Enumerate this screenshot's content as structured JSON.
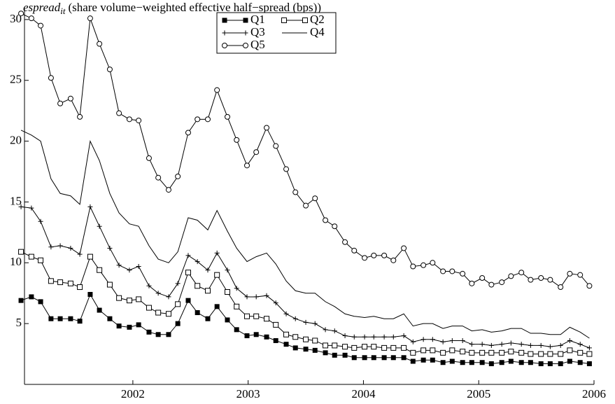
{
  "chart_data": {
    "type": "line",
    "title": {
      "main": "espread",
      "subscript": "it",
      "rest": "(share volume−weighted effective half−spread (bps))"
    },
    "x": [
      2001.03,
      2001.12,
      2001.2,
      2001.29,
      2001.37,
      2001.46,
      2001.54,
      2001.63,
      2001.71,
      2001.8,
      2001.88,
      2001.97,
      2002.05,
      2002.14,
      2002.22,
      2002.31,
      2002.39,
      2002.48,
      2002.56,
      2002.65,
      2002.73,
      2002.82,
      2002.9,
      2002.99,
      2003.07,
      2003.16,
      2003.24,
      2003.33,
      2003.41,
      2003.5,
      2003.58,
      2003.67,
      2003.75,
      2003.84,
      2003.92,
      2004.01,
      2004.09,
      2004.18,
      2004.26,
      2004.35,
      2004.43,
      2004.52,
      2004.6,
      2004.69,
      2004.77,
      2004.86,
      2004.94,
      2005.03,
      2005.11,
      2005.2,
      2005.28,
      2005.37,
      2005.45,
      2005.54,
      2005.62,
      2005.71,
      2005.79,
      2005.88,
      2005.96
    ],
    "series": [
      {
        "name": "Q1",
        "color": "#000000",
        "marker": "filled-square",
        "values": [
          6.9,
          7.2,
          6.8,
          5.4,
          5.4,
          5.4,
          5.2,
          7.4,
          6.1,
          5.4,
          4.8,
          4.7,
          4.9,
          4.3,
          4.1,
          4.1,
          5.0,
          6.9,
          5.9,
          5.4,
          6.4,
          5.3,
          4.5,
          4.0,
          4.1,
          3.9,
          3.6,
          3.3,
          3.0,
          2.9,
          2.8,
          2.6,
          2.4,
          2.4,
          2.2,
          2.2,
          2.2,
          2.2,
          2.2,
          2.2,
          1.9,
          2.0,
          2.0,
          1.8,
          1.9,
          1.8,
          1.8,
          1.8,
          1.7,
          1.8,
          1.9,
          1.8,
          1.8,
          1.7,
          1.7,
          1.7,
          1.9,
          1.8,
          1.7
        ]
      },
      {
        "name": "Q2",
        "color": "#000000",
        "marker": "open-square",
        "values": [
          10.9,
          10.5,
          10.2,
          8.5,
          8.4,
          8.3,
          8.0,
          10.5,
          9.4,
          8.2,
          7.1,
          6.9,
          7.0,
          6.3,
          5.9,
          5.8,
          6.6,
          9.2,
          8.1,
          7.7,
          9.0,
          7.6,
          6.4,
          5.6,
          5.6,
          5.4,
          4.9,
          4.1,
          3.9,
          3.7,
          3.6,
          3.2,
          3.2,
          3.1,
          3.0,
          3.1,
          3.1,
          3.0,
          3.0,
          3.0,
          2.6,
          2.8,
          2.8,
          2.6,
          2.8,
          2.7,
          2.6,
          2.6,
          2.6,
          2.6,
          2.7,
          2.6,
          2.5,
          2.5,
          2.5,
          2.5,
          2.8,
          2.6,
          2.5
        ]
      },
      {
        "name": "Q3",
        "color": "#000000",
        "marker": "plus",
        "values": [
          14.6,
          14.5,
          13.4,
          11.3,
          11.4,
          11.2,
          10.7,
          14.6,
          13.0,
          11.2,
          9.8,
          9.4,
          9.7,
          8.1,
          7.5,
          7.2,
          8.3,
          10.6,
          10.1,
          9.4,
          10.8,
          9.4,
          7.9,
          7.2,
          7.2,
          7.3,
          6.7,
          5.8,
          5.4,
          5.1,
          5.0,
          4.5,
          4.4,
          4.0,
          3.9,
          3.9,
          3.9,
          3.9,
          3.9,
          4.0,
          3.5,
          3.7,
          3.7,
          3.5,
          3.6,
          3.6,
          3.3,
          3.3,
          3.2,
          3.3,
          3.4,
          3.3,
          3.2,
          3.2,
          3.1,
          3.2,
          3.6,
          3.3,
          3.0
        ]
      },
      {
        "name": "Q4",
        "color": "#000000",
        "marker": "none",
        "values": [
          20.9,
          20.5,
          20.0,
          16.9,
          15.7,
          15.5,
          14.8,
          20.0,
          18.4,
          15.7,
          14.1,
          13.2,
          13.0,
          11.4,
          10.3,
          10.0,
          10.9,
          13.7,
          13.5,
          12.7,
          14.3,
          12.6,
          11.2,
          10.1,
          10.5,
          10.8,
          9.9,
          8.5,
          7.7,
          7.5,
          7.5,
          6.8,
          6.4,
          5.8,
          5.6,
          5.5,
          5.6,
          5.4,
          5.4,
          5.8,
          4.8,
          5.0,
          5.0,
          4.6,
          4.8,
          4.8,
          4.4,
          4.5,
          4.3,
          4.4,
          4.6,
          4.6,
          4.2,
          4.2,
          4.1,
          4.1,
          4.7,
          4.3,
          3.8
        ]
      },
      {
        "name": "Q5",
        "color": "#000000",
        "marker": "open-circle",
        "values": [
          30.5,
          30.1,
          29.5,
          25.2,
          23.1,
          23.5,
          22.0,
          30.1,
          28.0,
          25.9,
          22.3,
          21.8,
          21.7,
          18.6,
          17.0,
          16.0,
          17.1,
          20.7,
          21.8,
          21.8,
          24.2,
          22.0,
          20.1,
          18.0,
          19.1,
          21.1,
          19.6,
          17.7,
          15.8,
          14.7,
          15.3,
          13.5,
          13.0,
          11.7,
          11.0,
          10.4,
          10.6,
          10.6,
          10.2,
          11.2,
          9.7,
          9.8,
          10.0,
          9.3,
          9.3,
          9.1,
          8.3,
          8.75,
          8.2,
          8.4,
          8.9,
          9.2,
          8.6,
          8.75,
          8.6,
          8.0,
          9.1,
          9.0,
          8.1
        ]
      }
    ],
    "xlim": [
      2001.06,
      2006
    ],
    "xticks": [
      2002,
      2003,
      2004,
      2005,
      2006
    ],
    "ylim": [
      0,
      31
    ],
    "yticks": [
      5,
      10,
      15,
      20,
      25,
      30
    ],
    "grid": false,
    "legend": "top"
  }
}
